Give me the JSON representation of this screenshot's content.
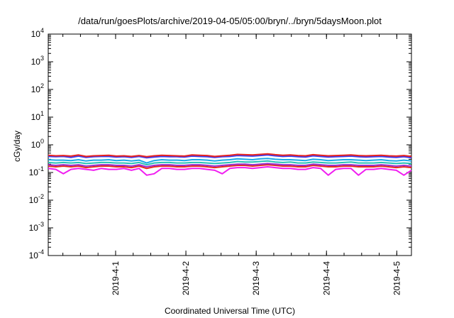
{
  "chart_data": {
    "type": "line",
    "title": "/data/run/goesPlots/archive/2019-04-05/05:00/bryn/../bryn/5daysMoon.plot",
    "xlabel": "Coordinated Universal Time (UTC)",
    "ylabel": "cGy/day",
    "yscale": "log",
    "ylim": [
      0.0001,
      10000
    ],
    "y_ticks": [
      {
        "base": "10",
        "exp": "-4",
        "value": 0.0001
      },
      {
        "base": "10",
        "exp": "-3",
        "value": 0.001
      },
      {
        "base": "10",
        "exp": "-2",
        "value": 0.01
      },
      {
        "base": "10",
        "exp": "-1",
        "value": 0.1
      },
      {
        "base": "10",
        "exp": "0",
        "value": 1
      },
      {
        "base": "10",
        "exp": "1",
        "value": 10
      },
      {
        "base": "10",
        "exp": "2",
        "value": 100
      },
      {
        "base": "10",
        "exp": "3",
        "value": 1000
      },
      {
        "base": "10",
        "exp": "4",
        "value": 10000
      }
    ],
    "xlim": [
      "2019-03-31T01:00",
      "2019-04-05T05:00"
    ],
    "x_ticks": [
      "2019-4-1",
      "2019-4-2",
      "2019-4-3",
      "2019-4-4",
      "2019-4-5"
    ],
    "grid": false,
    "legend": "none",
    "series": [
      {
        "color": "#e8241f",
        "values": [
          0.42,
          0.4,
          0.41,
          0.39,
          0.43,
          0.38,
          0.4,
          0.41,
          0.42,
          0.39,
          0.4,
          0.38,
          0.41,
          0.37,
          0.4,
          0.42,
          0.41,
          0.4,
          0.39,
          0.43,
          0.42,
          0.41,
          0.38,
          0.4,
          0.42,
          0.45,
          0.44,
          0.43,
          0.45,
          0.47,
          0.44,
          0.42,
          0.43,
          0.41,
          0.4,
          0.44,
          0.42,
          0.4,
          0.41,
          0.42,
          0.43,
          0.41,
          0.4,
          0.41,
          0.42,
          0.4,
          0.39,
          0.41,
          0.38
        ]
      },
      {
        "color": "#3a3af0",
        "values": [
          0.38,
          0.37,
          0.38,
          0.35,
          0.39,
          0.35,
          0.37,
          0.38,
          0.38,
          0.36,
          0.37,
          0.35,
          0.38,
          0.34,
          0.36,
          0.38,
          0.37,
          0.37,
          0.36,
          0.39,
          0.38,
          0.37,
          0.35,
          0.37,
          0.38,
          0.41,
          0.4,
          0.39,
          0.41,
          0.43,
          0.4,
          0.38,
          0.39,
          0.37,
          0.36,
          0.4,
          0.38,
          0.36,
          0.37,
          0.38,
          0.39,
          0.37,
          0.36,
          0.37,
          0.38,
          0.36,
          0.35,
          0.37,
          0.34
        ]
      },
      {
        "color": "#1aa8e8",
        "values": [
          0.29,
          0.28,
          0.28,
          0.27,
          0.29,
          0.26,
          0.28,
          0.28,
          0.29,
          0.27,
          0.28,
          0.26,
          0.28,
          0.22,
          0.27,
          0.29,
          0.28,
          0.28,
          0.27,
          0.29,
          0.29,
          0.28,
          0.26,
          0.28,
          0.29,
          0.31,
          0.3,
          0.29,
          0.31,
          0.32,
          0.3,
          0.29,
          0.29,
          0.28,
          0.27,
          0.3,
          0.29,
          0.27,
          0.28,
          0.29,
          0.29,
          0.28,
          0.27,
          0.28,
          0.29,
          0.27,
          0.26,
          0.28,
          0.26
        ]
      },
      {
        "color": "#27c1b7",
        "values": [
          0.23,
          0.22,
          0.23,
          0.22,
          0.23,
          0.21,
          0.22,
          0.23,
          0.23,
          0.22,
          0.22,
          0.21,
          0.23,
          0.19,
          0.22,
          0.23,
          0.23,
          0.22,
          0.22,
          0.23,
          0.23,
          0.22,
          0.21,
          0.22,
          0.23,
          0.25,
          0.24,
          0.24,
          0.25,
          0.26,
          0.24,
          0.23,
          0.24,
          0.22,
          0.22,
          0.24,
          0.23,
          0.22,
          0.22,
          0.23,
          0.24,
          0.22,
          0.22,
          0.22,
          0.23,
          0.22,
          0.21,
          0.22,
          0.21
        ]
      },
      {
        "color": "#9b2fd0",
        "values": [
          0.19,
          0.18,
          0.19,
          0.18,
          0.19,
          0.17,
          0.18,
          0.19,
          0.19,
          0.18,
          0.18,
          0.17,
          0.19,
          0.16,
          0.18,
          0.19,
          0.19,
          0.18,
          0.18,
          0.19,
          0.19,
          0.18,
          0.17,
          0.18,
          0.19,
          0.2,
          0.2,
          0.19,
          0.2,
          0.21,
          0.2,
          0.19,
          0.19,
          0.18,
          0.18,
          0.2,
          0.19,
          0.18,
          0.18,
          0.19,
          0.19,
          0.18,
          0.18,
          0.18,
          0.19,
          0.18,
          0.17,
          0.18,
          0.17
        ]
      },
      {
        "color": "#e8281a",
        "values": [
          0.17,
          0.16,
          0.17,
          0.16,
          0.17,
          0.15,
          0.16,
          0.17,
          0.17,
          0.16,
          0.16,
          0.15,
          0.17,
          0.14,
          0.16,
          0.17,
          0.17,
          0.16,
          0.16,
          0.17,
          0.17,
          0.16,
          0.15,
          0.16,
          0.17,
          0.18,
          0.18,
          0.17,
          0.18,
          0.19,
          0.18,
          0.17,
          0.17,
          0.16,
          0.16,
          0.18,
          0.17,
          0.16,
          0.16,
          0.17,
          0.17,
          0.16,
          0.16,
          0.16,
          0.17,
          0.16,
          0.15,
          0.16,
          0.15
        ]
      },
      {
        "color": "#f01ef0",
        "values": [
          0.14,
          0.13,
          0.09,
          0.13,
          0.14,
          0.13,
          0.12,
          0.14,
          0.13,
          0.13,
          0.14,
          0.12,
          0.14,
          0.08,
          0.09,
          0.14,
          0.14,
          0.13,
          0.13,
          0.14,
          0.14,
          0.13,
          0.12,
          0.09,
          0.14,
          0.15,
          0.15,
          0.14,
          0.15,
          0.16,
          0.15,
          0.14,
          0.14,
          0.13,
          0.13,
          0.15,
          0.14,
          0.08,
          0.13,
          0.14,
          0.14,
          0.08,
          0.13,
          0.13,
          0.14,
          0.13,
          0.12,
          0.08,
          0.12
        ]
      }
    ]
  }
}
